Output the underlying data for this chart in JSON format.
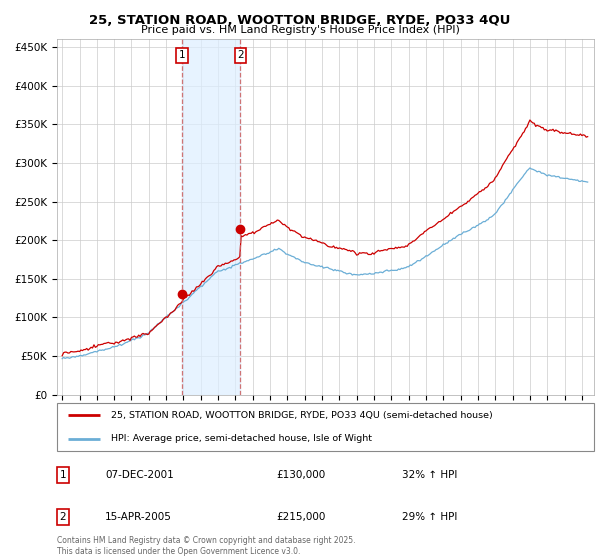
{
  "title": "25, STATION ROAD, WOOTTON BRIDGE, RYDE, PO33 4QU",
  "subtitle": "Price paid vs. HM Land Registry's House Price Index (HPI)",
  "ylabel_ticks": [
    "£0",
    "£50K",
    "£100K",
    "£150K",
    "£200K",
    "£250K",
    "£300K",
    "£350K",
    "£400K",
    "£450K"
  ],
  "ytick_values": [
    0,
    50000,
    100000,
    150000,
    200000,
    250000,
    300000,
    350000,
    400000,
    450000
  ],
  "ylim": [
    0,
    460000
  ],
  "xlim_start": 1994.7,
  "xlim_end": 2025.7,
  "sale1": {
    "date": 2001.92,
    "price": 130000,
    "label": "1"
  },
  "sale2": {
    "date": 2005.29,
    "price": 215000,
    "label": "2"
  },
  "legend_line1": "25, STATION ROAD, WOOTTON BRIDGE, RYDE, PO33 4QU (semi-detached house)",
  "legend_line2": "HPI: Average price, semi-detached house, Isle of Wight",
  "table_rows": [
    {
      "num": "1",
      "date": "07-DEC-2001",
      "price": "£130,000",
      "pct": "32% ↑ HPI"
    },
    {
      "num": "2",
      "date": "15-APR-2005",
      "price": "£215,000",
      "pct": "29% ↑ HPI"
    }
  ],
  "footer": "Contains HM Land Registry data © Crown copyright and database right 2025.\nThis data is licensed under the Open Government Licence v3.0.",
  "line_red": "#cc0000",
  "line_blue": "#6baed6",
  "shade_color": "#ddeeff",
  "bg_color": "#ffffff",
  "grid_color": "#cccccc"
}
